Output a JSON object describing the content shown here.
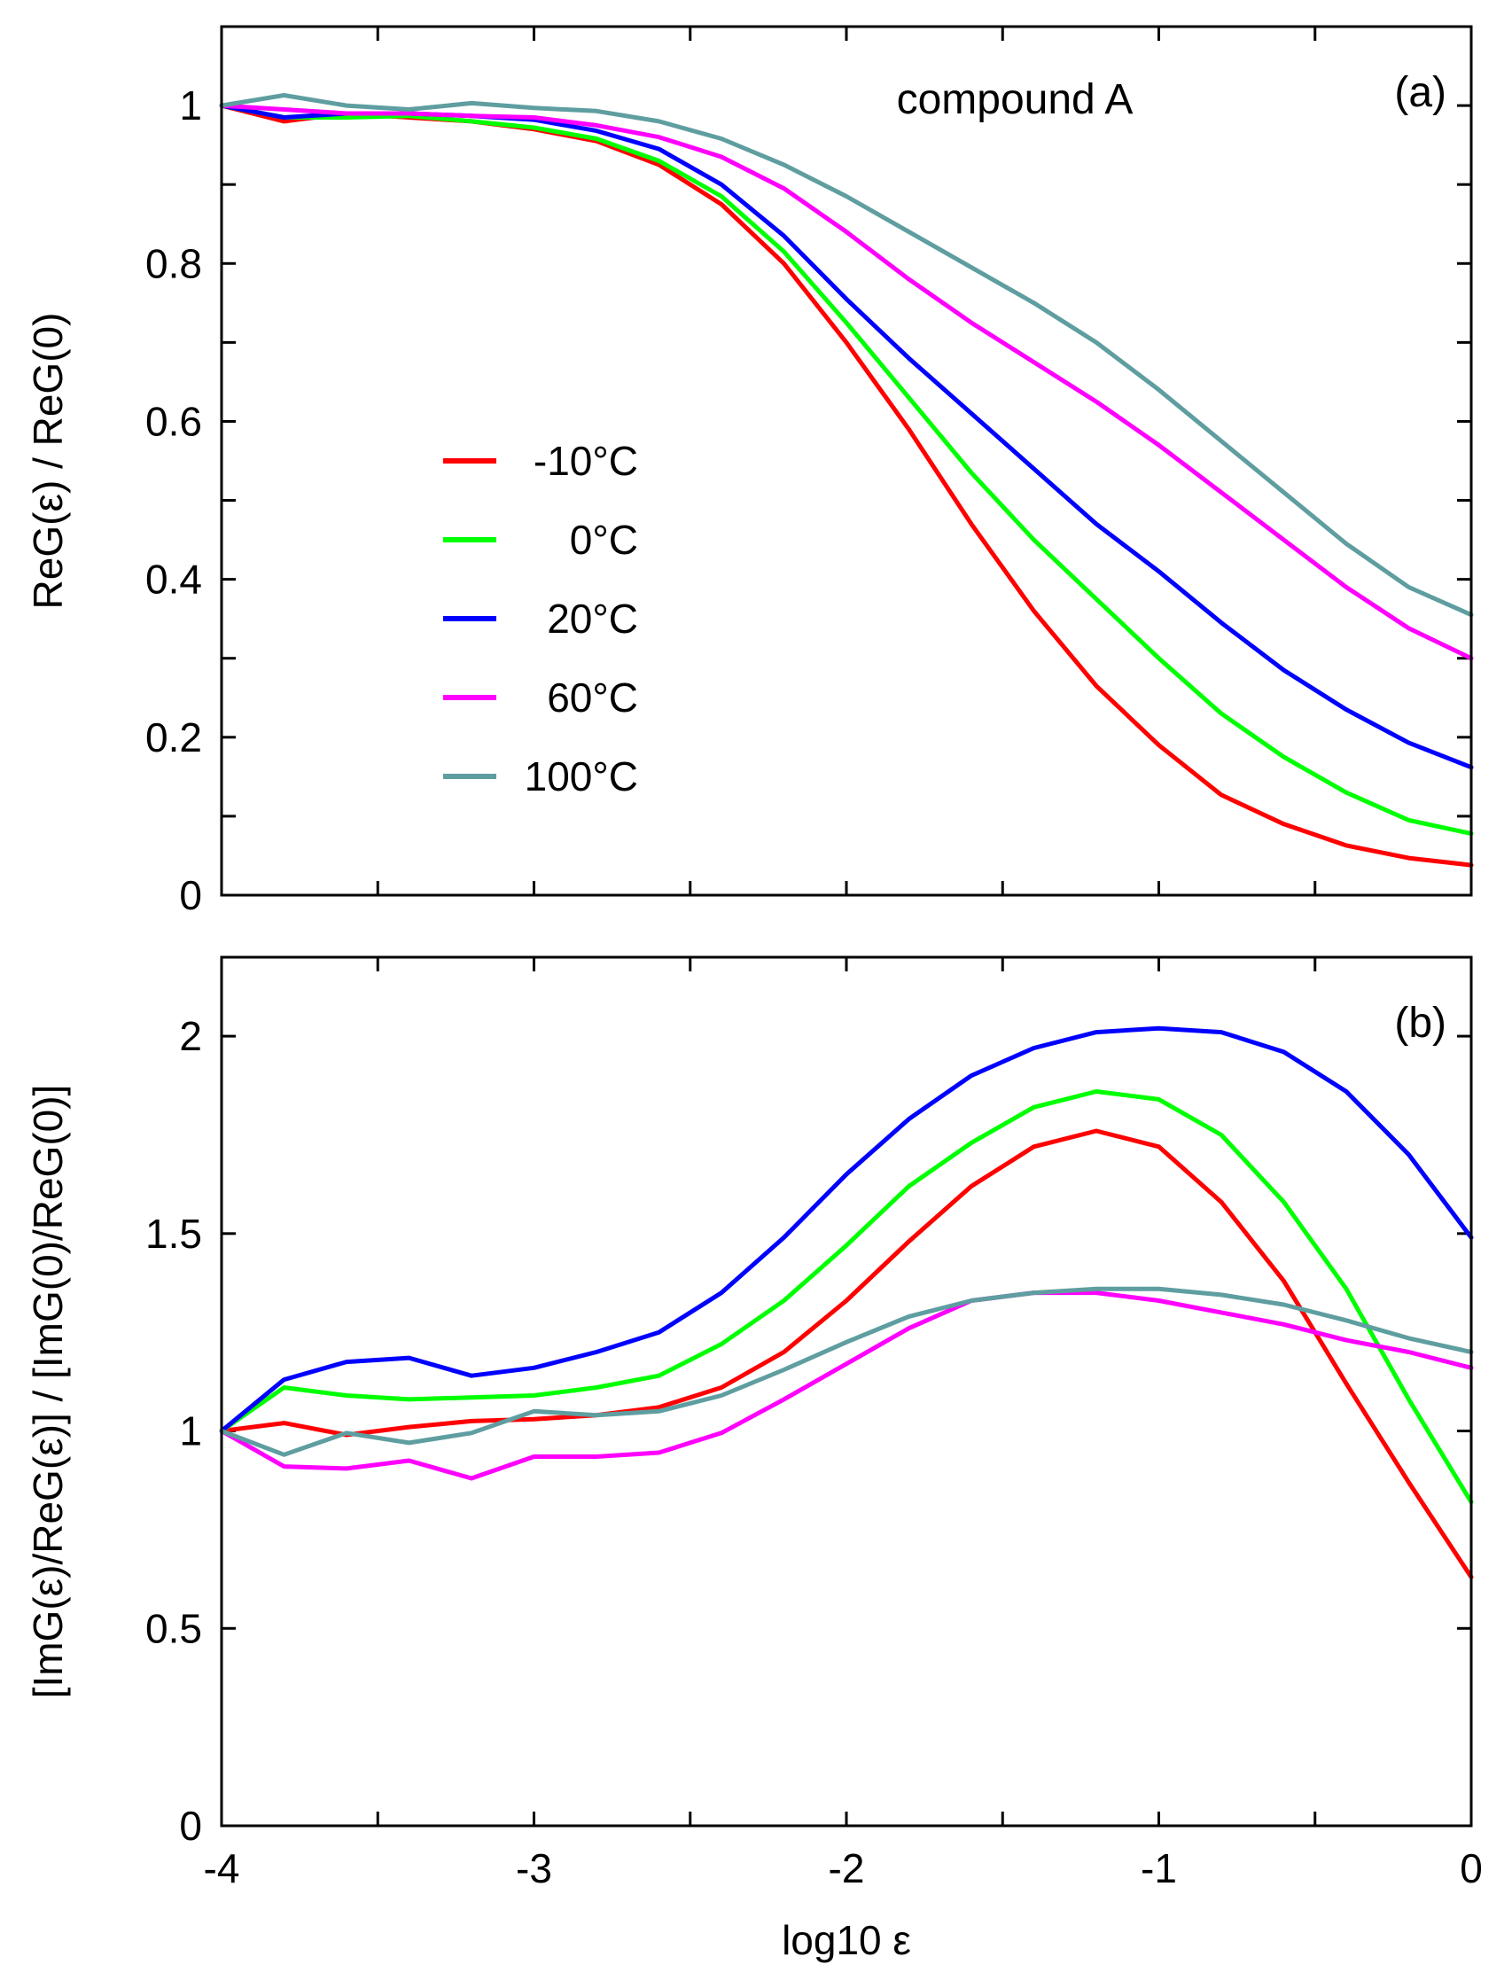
{
  "chart_data": [
    {
      "id": "a",
      "type": "line",
      "panel_label": "(a)",
      "annotation": "compound A",
      "title": "",
      "xlabel": "",
      "ylabel": "ReG(ε) / ReG(0)",
      "xlim": [
        -4,
        0
      ],
      "ylim": [
        0,
        1.1
      ],
      "xticks": [
        -4,
        -3.5,
        -3,
        -2.5,
        -2,
        -1.5,
        -1,
        -0.5,
        0
      ],
      "yticks": [
        0,
        0.1,
        0.2,
        0.3,
        0.4,
        0.5,
        0.6,
        0.7,
        0.8,
        0.9,
        1.0
      ],
      "ytick_labels": [
        {
          "value": 0,
          "label": "0"
        },
        {
          "value": 0.2,
          "label": "0.2"
        },
        {
          "value": 0.4,
          "label": "0.4"
        },
        {
          "value": 0.6,
          "label": "0.6"
        },
        {
          "value": 0.8,
          "label": "0.8"
        },
        {
          "value": 1.0,
          "label": "1"
        }
      ],
      "x": [
        -4,
        -3.8,
        -3.6,
        -3.4,
        -3.2,
        -3.0,
        -2.8,
        -2.6,
        -2.4,
        -2.2,
        -2.0,
        -1.8,
        -1.6,
        -1.4,
        -1.2,
        -1.0,
        -0.8,
        -0.6,
        -0.4,
        -0.2,
        0
      ],
      "series": [
        {
          "name": "-10°C",
          "color": "#ff0000",
          "values": [
            1.0,
            0.98,
            0.99,
            0.985,
            0.98,
            0.97,
            0.955,
            0.925,
            0.875,
            0.8,
            0.7,
            0.59,
            0.47,
            0.36,
            0.265,
            0.19,
            0.127,
            0.09,
            0.063,
            0.047,
            0.038
          ]
        },
        {
          "name": "0°C",
          "color": "#00ff00",
          "values": [
            1.0,
            0.985,
            0.985,
            0.987,
            0.98,
            0.972,
            0.958,
            0.93,
            0.885,
            0.815,
            0.725,
            0.63,
            0.535,
            0.45,
            0.375,
            0.3,
            0.23,
            0.175,
            0.13,
            0.095,
            0.078
          ]
        },
        {
          "name": "20°C",
          "color": "#0000ff",
          "values": [
            1.0,
            0.985,
            0.99,
            0.99,
            0.987,
            0.982,
            0.968,
            0.945,
            0.9,
            0.835,
            0.755,
            0.68,
            0.61,
            0.54,
            0.47,
            0.41,
            0.345,
            0.285,
            0.235,
            0.193,
            0.162
          ]
        },
        {
          "name": "60°C",
          "color": "#ff00ff",
          "values": [
            1.0,
            0.995,
            0.99,
            0.99,
            0.987,
            0.985,
            0.975,
            0.96,
            0.935,
            0.895,
            0.84,
            0.78,
            0.725,
            0.675,
            0.625,
            0.57,
            0.51,
            0.45,
            0.39,
            0.338,
            0.3
          ]
        },
        {
          "name": "100°C",
          "color": "#5f9ea0",
          "values": [
            1.0,
            1.013,
            1.0,
            0.995,
            1.003,
            0.997,
            0.993,
            0.98,
            0.958,
            0.925,
            0.885,
            0.84,
            0.795,
            0.75,
            0.7,
            0.64,
            0.575,
            0.51,
            0.445,
            0.39,
            0.355
          ]
        }
      ],
      "legend": {
        "position": "center-left",
        "entries": [
          "-10°C",
          "0°C",
          "20°C",
          "60°C",
          "100°C"
        ]
      }
    },
    {
      "id": "b",
      "type": "line",
      "panel_label": "(b)",
      "title": "",
      "xlabel": "log10 ε",
      "ylabel": "[ImG(ε)/ReG(ε)] / [ImG(0)/ReG(0)]",
      "xlim": [
        -4,
        0
      ],
      "ylim": [
        0,
        2.2
      ],
      "xticks": [
        -4,
        -3.5,
        -3,
        -2.5,
        -2,
        -1.5,
        -1,
        -0.5,
        0
      ],
      "xtick_labels": [
        {
          "value": -4,
          "label": "-4"
        },
        {
          "value": -3,
          "label": "-3"
        },
        {
          "value": -2,
          "label": "-2"
        },
        {
          "value": -1,
          "label": "-1"
        },
        {
          "value": 0,
          "label": "0"
        }
      ],
      "yticks": [
        0,
        0.5,
        1.0,
        1.5,
        2.0
      ],
      "ytick_labels": [
        {
          "value": 0,
          "label": "0"
        },
        {
          "value": 0.5,
          "label": "0.5"
        },
        {
          "value": 1.0,
          "label": "1"
        },
        {
          "value": 1.5,
          "label": "1.5"
        },
        {
          "value": 2.0,
          "label": "2"
        }
      ],
      "x": [
        -4,
        -3.8,
        -3.6,
        -3.4,
        -3.2,
        -3.0,
        -2.8,
        -2.6,
        -2.4,
        -2.2,
        -2.0,
        -1.8,
        -1.6,
        -1.4,
        -1.2,
        -1.0,
        -0.8,
        -0.6,
        -0.4,
        -0.2,
        0
      ],
      "series": [
        {
          "name": "-10°C",
          "color": "#ff0000",
          "values": [
            1.0,
            1.02,
            0.99,
            1.01,
            1.025,
            1.03,
            1.04,
            1.06,
            1.11,
            1.2,
            1.33,
            1.48,
            1.62,
            1.72,
            1.76,
            1.72,
            1.58,
            1.38,
            1.12,
            0.87,
            0.63
          ]
        },
        {
          "name": "0°C",
          "color": "#00ff00",
          "values": [
            1.0,
            1.11,
            1.09,
            1.08,
            1.085,
            1.09,
            1.11,
            1.14,
            1.22,
            1.33,
            1.47,
            1.62,
            1.73,
            1.82,
            1.86,
            1.84,
            1.75,
            1.58,
            1.36,
            1.08,
            0.82
          ]
        },
        {
          "name": "20°C",
          "color": "#0000ff",
          "values": [
            1.0,
            1.13,
            1.175,
            1.185,
            1.14,
            1.16,
            1.2,
            1.25,
            1.35,
            1.49,
            1.65,
            1.79,
            1.9,
            1.97,
            2.01,
            2.02,
            2.01,
            1.96,
            1.86,
            1.7,
            1.49
          ]
        },
        {
          "name": "60°C",
          "color": "#ff00ff",
          "values": [
            1.0,
            0.91,
            0.905,
            0.925,
            0.88,
            0.935,
            0.935,
            0.945,
            0.995,
            1.08,
            1.17,
            1.26,
            1.33,
            1.35,
            1.35,
            1.33,
            1.3,
            1.27,
            1.23,
            1.2,
            1.16
          ]
        },
        {
          "name": "100°C",
          "color": "#5f9ea0",
          "values": [
            1.0,
            0.94,
            0.995,
            0.97,
            0.995,
            1.05,
            1.04,
            1.05,
            1.09,
            1.155,
            1.225,
            1.29,
            1.33,
            1.35,
            1.36,
            1.36,
            1.345,
            1.32,
            1.28,
            1.235,
            1.2
          ]
        }
      ]
    }
  ]
}
